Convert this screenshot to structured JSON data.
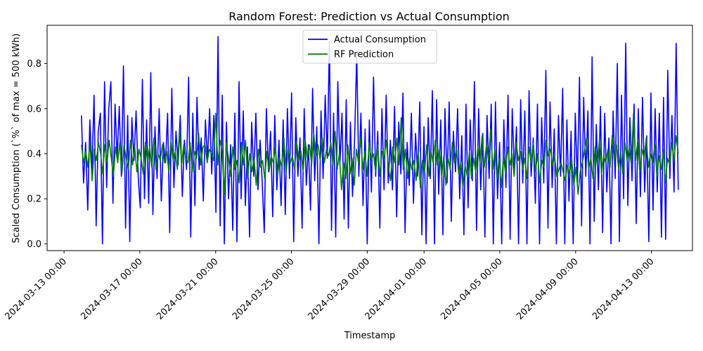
{
  "chart_data": {
    "type": "line",
    "title": "Random Forest: Prediction vs Actual Consumption",
    "xlabel": "Timestamp",
    "ylabel": "Scaled Consumption (`%` of max = 500 kWh)",
    "x_ticks": [
      "2024-03-13 00:00",
      "2024-03-17 00:00",
      "2024-03-21 00:00",
      "2024-03-25 00:00",
      "2024-03-29 00:00",
      "2024-04-01 00:00",
      "2024-04-05 00:00",
      "2024-04-09 00:00",
      "2024-04-13 00:00"
    ],
    "y_ticks": [
      "0.0",
      "0.2",
      "0.4",
      "0.6",
      "0.8"
    ],
    "ylim": [
      -0.03,
      0.97
    ],
    "xlim": [
      "2024-03-12 02:30",
      "2024-04-15 04:00"
    ],
    "x_range": [
      "2024-03-13 22:00",
      "2024-04-14 10:00"
    ],
    "grid": false,
    "legend_position": "top-center",
    "legend": [
      "Actual Consumption",
      "RF Prediction"
    ],
    "series": [
      {
        "name": "Actual Consumption",
        "color": "#0000ff",
        "values": [
          0.57,
          0.27,
          0.45,
          0.15,
          0.55,
          0.32,
          0.66,
          0.08,
          0.5,
          0.58,
          0.0,
          0.72,
          0.25,
          0.6,
          0.72,
          0.18,
          0.62,
          0.38,
          0.61,
          0.3,
          0.79,
          0.07,
          0.57,
          0.01,
          0.56,
          0.37,
          0.59,
          0.3,
          0.16,
          0.73,
          0.2,
          0.55,
          0.18,
          0.76,
          0.13,
          0.52,
          0.29,
          0.6,
          0.19,
          0.45,
          0.36,
          0.58,
          0.05,
          0.69,
          0.25,
          0.5,
          0.35,
          0.57,
          0.21,
          0.46,
          0.33,
          0.74,
          0.03,
          0.58,
          0.17,
          0.65,
          0.33,
          0.47,
          0.19,
          0.55,
          0.37,
          0.6,
          0.31,
          0.57,
          0.14,
          0.92,
          0.08,
          0.66,
          0.0,
          0.54,
          0.2,
          0.44,
          0.06,
          0.58,
          0.01,
          0.72,
          0.2,
          0.59,
          0.17,
          0.43,
          0.03,
          0.54,
          0.3,
          0.58,
          0.24,
          0.46,
          0.28,
          0.05,
          0.6,
          0.32,
          0.5,
          0.12,
          0.57,
          0.24,
          0.46,
          0.17,
          0.55,
          0.13,
          0.6,
          0.29,
          0.67,
          0.01,
          0.56,
          0.3,
          0.47,
          0.07,
          0.6,
          0.26,
          0.44,
          0.15,
          0.69,
          0.28,
          0.52,
          0.0,
          0.59,
          0.29,
          0.66,
          0.38,
          0.9,
          0.06,
          0.58,
          0.03,
          0.72,
          0.35,
          0.58,
          0.11,
          0.64,
          0.07,
          0.54,
          0.21,
          0.47,
          0.84,
          0.3,
          0.58,
          0.17,
          0.51,
          0.0,
          0.55,
          0.23,
          0.74,
          0.3,
          0.5,
          0.07,
          0.6,
          0.24,
          0.66,
          0.27,
          0.46,
          0.24,
          0.61,
          0.12,
          0.54,
          0.31,
          0.67,
          0.05,
          0.45,
          0.26,
          0.58,
          0.18,
          0.49,
          0.3,
          0.63,
          0.04,
          0.52,
          0.0,
          0.56,
          0.29,
          0.68,
          0.0,
          0.64,
          0.22,
          0.55,
          0.04,
          0.6,
          0.27,
          0.63,
          0.1,
          0.5,
          0.32,
          0.6,
          0.2,
          0.48,
          0.04,
          0.62,
          0.16,
          0.55,
          0.28,
          0.72,
          0.06,
          0.6,
          0.24,
          0.49,
          0.03,
          0.57,
          0.29,
          0.62,
          0.0,
          0.63,
          0.2,
          0.45,
          0.0,
          0.55,
          0.25,
          0.66,
          0.02,
          0.6,
          0.32,
          0.52,
          0.0,
          0.64,
          0.27,
          0.59,
          0.0,
          0.68,
          0.3,
          0.47,
          0.18,
          0.62,
          0.0,
          0.56,
          0.27,
          0.77,
          0.07,
          0.63,
          0.25,
          0.51,
          0.0,
          0.57,
          0.3,
          0.69,
          0.0,
          0.55,
          0.19,
          0.5,
          0.0,
          0.58,
          0.27,
          0.74,
          0.08,
          0.65,
          0.3,
          0.59,
          0.0,
          0.83,
          0.1,
          0.53,
          0.24,
          0.61,
          0.05,
          0.58,
          0.23,
          0.47,
          0.0,
          0.59,
          0.29,
          0.8,
          0.01,
          0.66,
          0.2,
          0.89,
          0.17,
          0.56,
          0.28,
          0.62,
          0.09,
          0.6,
          0.21,
          0.65,
          0.23,
          0.48,
          0.01,
          0.67,
          0.15,
          0.6,
          0.23,
          0.58,
          0.03,
          0.65,
          0.02,
          0.77,
          0.29,
          0.57,
          0.23,
          0.89,
          0.24
        ]
      },
      {
        "name": "RF Prediction",
        "color": "#008000",
        "values": [
          0.44,
          0.36,
          0.41,
          0.34,
          0.45,
          0.28,
          0.42,
          0.37,
          0.45,
          0.4,
          0.31,
          0.44,
          0.36,
          0.46,
          0.38,
          0.3,
          0.43,
          0.36,
          0.45,
          0.31,
          0.44,
          0.38,
          0.33,
          0.46,
          0.35,
          0.43,
          0.32,
          0.42,
          0.38,
          0.31,
          0.45,
          0.37,
          0.43,
          0.34,
          0.47,
          0.33,
          0.4,
          0.37,
          0.44,
          0.36,
          0.41,
          0.32,
          0.46,
          0.37,
          0.41,
          0.33,
          0.51,
          0.35,
          0.44,
          0.38,
          0.36,
          0.45,
          0.32,
          0.41,
          0.38,
          0.49,
          0.35,
          0.43,
          0.44,
          0.36,
          0.42,
          0.4,
          0.37,
          0.58,
          0.35,
          0.46,
          0.41,
          0.22,
          0.45,
          0.38,
          0.3,
          0.43,
          0.33,
          0.37,
          0.27,
          0.45,
          0.35,
          0.46,
          0.29,
          0.4,
          0.32,
          0.38,
          0.26,
          0.42,
          0.34,
          0.37,
          0.29,
          0.41,
          0.32,
          0.39,
          0.36,
          0.43,
          0.3,
          0.38,
          0.34,
          0.47,
          0.31,
          0.42,
          0.36,
          0.39,
          0.33,
          0.45,
          0.37,
          0.41,
          0.32,
          0.46,
          0.38,
          0.44,
          0.35,
          0.49,
          0.39,
          0.44,
          0.37,
          0.47,
          0.36,
          0.42,
          0.39,
          0.45,
          0.35,
          0.5,
          0.33,
          0.4,
          0.24,
          0.36,
          0.29,
          0.44,
          0.31,
          0.38,
          0.26,
          0.42,
          0.36,
          0.47,
          0.33,
          0.41,
          0.3,
          0.45,
          0.37,
          0.4,
          0.32,
          0.44,
          0.3,
          0.41,
          0.38,
          0.46,
          0.34,
          0.28,
          0.43,
          0.36,
          0.47,
          0.35,
          0.56,
          0.33,
          0.42,
          0.29,
          0.38,
          0.33,
          0.37,
          0.28,
          0.41,
          0.25,
          0.37,
          0.32,
          0.44,
          0.3,
          0.41,
          0.36,
          0.46,
          0.35,
          0.42,
          0.3,
          0.39,
          0.26,
          0.38,
          0.33,
          0.45,
          0.36,
          0.42,
          0.31,
          0.36,
          0.25,
          0.35,
          0.3,
          0.41,
          0.29,
          0.38,
          0.32,
          0.43,
          0.36,
          0.48,
          0.34,
          0.44,
          0.37,
          0.51,
          0.33,
          0.42,
          0.29,
          0.38,
          0.25,
          0.39,
          0.31,
          0.43,
          0.35,
          0.4,
          0.3,
          0.45,
          0.37,
          0.41,
          0.33,
          0.38,
          0.29,
          0.43,
          0.36,
          0.45,
          0.32,
          0.4,
          0.27,
          0.37,
          0.34,
          0.46,
          0.39,
          0.42,
          0.35,
          0.39,
          0.3,
          0.33,
          0.36,
          0.32,
          0.28,
          0.35,
          0.31,
          0.38,
          0.26,
          0.34,
          0.22,
          0.32,
          0.36,
          0.41,
          0.47,
          0.33,
          0.38,
          0.29,
          0.43,
          0.35,
          0.46,
          0.31,
          0.39,
          0.36,
          0.42,
          0.34,
          0.48,
          0.37,
          0.44,
          0.33,
          0.41,
          0.31,
          0.45,
          0.37,
          0.43,
          0.35,
          0.58,
          0.37,
          0.46,
          0.32,
          0.42,
          0.38,
          0.47,
          0.34,
          0.4,
          0.36,
          0.44,
          0.3,
          0.39,
          0.33,
          0.42,
          0.27,
          0.38,
          0.35,
          0.45,
          0.37,
          0.48,
          0.4
        ]
      }
    ]
  }
}
